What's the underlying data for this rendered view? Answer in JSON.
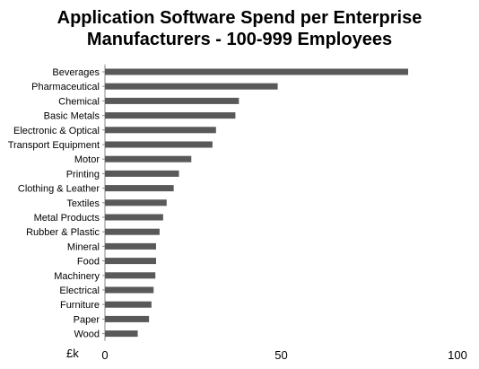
{
  "chart_data": {
    "type": "bar",
    "orientation": "horizontal",
    "title_lines": [
      "Application Software Spend per Enterprise",
      "Manufacturers - 100-999 Employees"
    ],
    "unit_label": "£k",
    "categories": [
      "Beverages",
      "Pharmaceutical",
      "Chemical",
      "Basic Metals",
      "Electronic & Optical",
      "Transport Equipment",
      "Motor",
      "Printing",
      "Clothing & Leather",
      "Textiles",
      "Metal Products",
      "Rubber & Plastic",
      "Mineral",
      "Food",
      "Machinery",
      "Electrical",
      "Furniture",
      "Paper",
      "Wood"
    ],
    "values": [
      86,
      49,
      38,
      37,
      31.5,
      30.5,
      24.5,
      21,
      19.5,
      17.5,
      16.5,
      15.5,
      14.5,
      14.5,
      14.3,
      13.8,
      13.2,
      12.5,
      9.3
    ],
    "xlim": [
      0,
      100
    ],
    "xticks": [
      0,
      50,
      100
    ],
    "bar_color": "#595959",
    "grid": false,
    "legend": "none"
  }
}
